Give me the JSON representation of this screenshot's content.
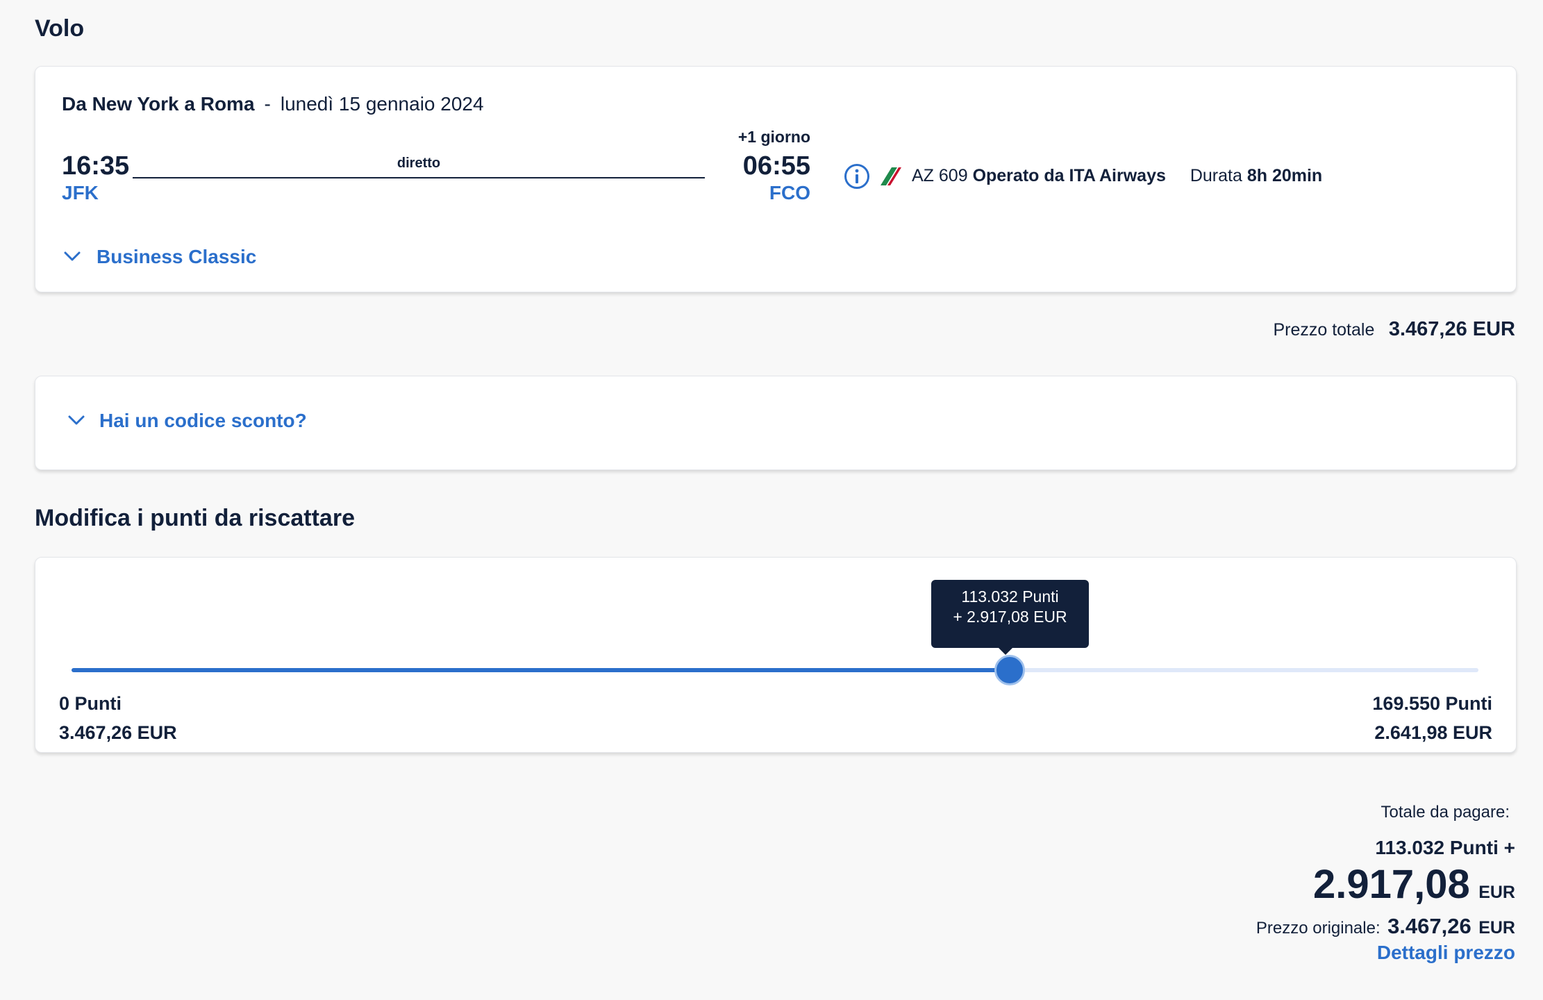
{
  "section_flight": {
    "title": "Volo"
  },
  "flight": {
    "route": "Da New York a Roma",
    "separator": "-",
    "date": "lunedì 15 gennaio 2024",
    "departure_time": "16:35",
    "departure_code": "JFK",
    "stop_label": "diretto",
    "day_offset": "+1 giorno",
    "arrival_time": "06:55",
    "arrival_code": "FCO",
    "flight_number": "AZ 609",
    "operator": "Operato da ITA Airways",
    "duration_label": "Durata",
    "duration_value": "8h 20min",
    "cabin_class": "Business Classic",
    "icons": [
      "info-icon",
      "airline-logo-icon",
      "chevron-down-icon"
    ]
  },
  "total_price": {
    "label": "Prezzo totale",
    "value": "3.467,26 EUR"
  },
  "discount": {
    "label": "Hai un codice sconto?"
  },
  "section_points": {
    "title": "Modifica i punti da riscattare"
  },
  "slider": {
    "level": 0.667,
    "tooltip_points": "113.032 Punti",
    "tooltip_cash": "+ 2.917,08  EUR",
    "min_points": "0 Punti",
    "min_cash": "3.467,26  EUR",
    "max_points": "169.550 Punti",
    "max_cash": "2.641,98  EUR"
  },
  "summary": {
    "total_label": "Totale da pagare:",
    "points_line": "113.032 Punti +",
    "amount": "2.917,08",
    "currency": "EUR",
    "original_label": "Prezzo originale:",
    "original_amount": "3.467,26",
    "original_currency": "EUR",
    "details_link": "Dettagli prezzo"
  },
  "colors": {
    "accent": "#2b6fcb",
    "navy": "#12203a",
    "track_inactive": "#dfe8f9",
    "background": "#f8f8f8"
  }
}
